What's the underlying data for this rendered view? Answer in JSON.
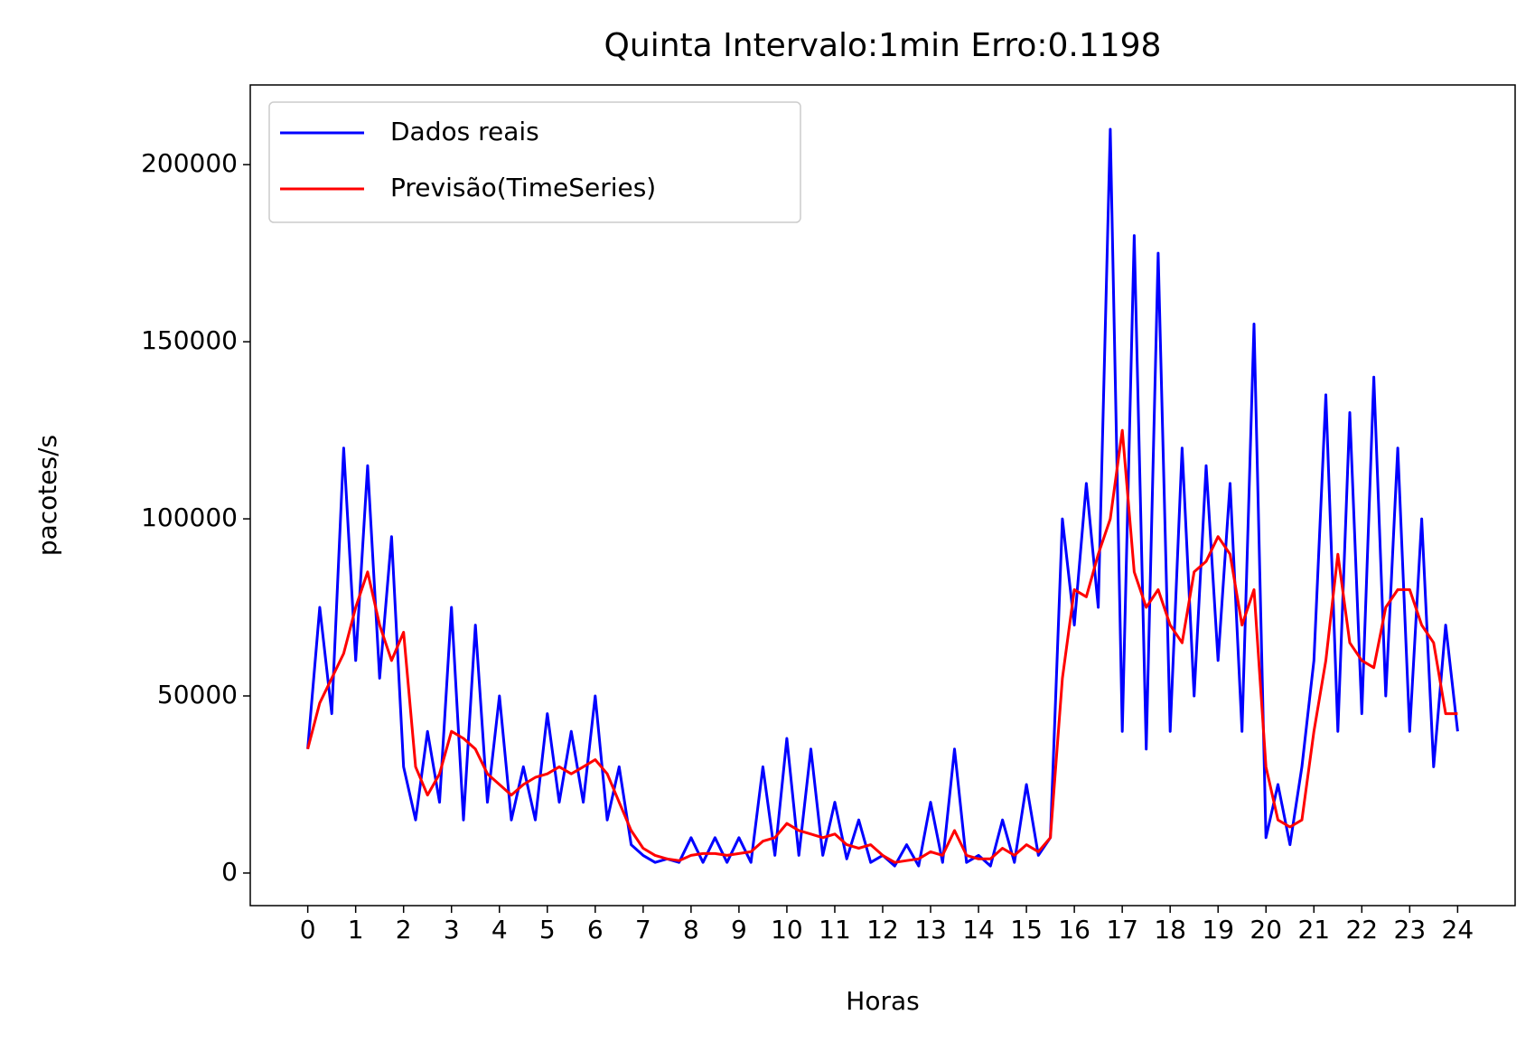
{
  "chart_data": {
    "type": "line",
    "title": "Quinta Intervalo:1min Erro:0.1198",
    "x_label": "Horas",
    "y_label": "pacotes/s",
    "x": [
      0,
      0.25,
      0.5,
      0.75,
      1,
      1.25,
      1.5,
      1.75,
      2,
      2.25,
      2.5,
      2.75,
      3,
      3.25,
      3.5,
      3.75,
      4,
      4.25,
      4.5,
      4.75,
      5,
      5.25,
      5.5,
      5.75,
      6,
      6.25,
      6.5,
      6.75,
      7,
      7.25,
      7.5,
      7.75,
      8,
      8.25,
      8.5,
      8.75,
      9,
      9.25,
      9.5,
      9.75,
      10,
      10.25,
      10.5,
      10.75,
      11,
      11.25,
      11.5,
      11.75,
      12,
      12.25,
      12.5,
      12.75,
      13,
      13.25,
      13.5,
      13.75,
      14,
      14.25,
      14.5,
      14.75,
      15,
      15.25,
      15.5,
      15.75,
      16,
      16.25,
      16.5,
      16.75,
      17,
      17.25,
      17.5,
      17.75,
      18,
      18.25,
      18.5,
      18.75,
      19,
      19.25,
      19.5,
      19.75,
      20,
      20.25,
      20.5,
      20.75,
      21,
      21.25,
      21.5,
      21.75,
      22,
      22.25,
      22.5,
      22.75,
      23,
      23.25,
      23.5,
      23.75,
      24
    ],
    "series": [
      {
        "name": "Dados reais",
        "color": "#0000ff",
        "values": [
          35000,
          75000,
          45000,
          120000,
          60000,
          115000,
          55000,
          95000,
          30000,
          15000,
          40000,
          20000,
          75000,
          15000,
          70000,
          20000,
          50000,
          15000,
          30000,
          15000,
          45000,
          20000,
          40000,
          20000,
          50000,
          15000,
          30000,
          8000,
          5000,
          3000,
          4000,
          3000,
          10000,
          3000,
          10000,
          3000,
          10000,
          3000,
          30000,
          5000,
          38000,
          5000,
          35000,
          5000,
          20000,
          4000,
          15000,
          3000,
          5000,
          2000,
          8000,
          2000,
          20000,
          3000,
          35000,
          3000,
          5000,
          2000,
          15000,
          3000,
          25000,
          5000,
          10000,
          100000,
          70000,
          110000,
          75000,
          210000,
          40000,
          180000,
          35000,
          175000,
          40000,
          120000,
          50000,
          115000,
          60000,
          110000,
          40000,
          155000,
          10000,
          25000,
          8000,
          30000,
          60000,
          135000,
          40000,
          130000,
          45000,
          140000,
          50000,
          120000,
          40000,
          100000,
          30000,
          70000,
          40000
        ]
      },
      {
        "name": "Previsão(TimeSeries)",
        "color": "#ff0000",
        "values": [
          35000,
          48000,
          55000,
          62000,
          75000,
          85000,
          70000,
          60000,
          68000,
          30000,
          22000,
          28000,
          40000,
          38000,
          35000,
          28000,
          25000,
          22000,
          25000,
          27000,
          28000,
          30000,
          28000,
          30000,
          32000,
          28000,
          20000,
          12000,
          7000,
          5000,
          4000,
          3500,
          5000,
          5500,
          5500,
          5000,
          5500,
          6000,
          9000,
          10000,
          14000,
          12000,
          11000,
          10000,
          11000,
          8000,
          7000,
          8000,
          5000,
          3000,
          3500,
          4000,
          6000,
          5000,
          12000,
          5000,
          4000,
          4000,
          7000,
          5000,
          8000,
          6000,
          10000,
          55000,
          80000,
          78000,
          90000,
          100000,
          125000,
          85000,
          75000,
          80000,
          70000,
          65000,
          85000,
          88000,
          95000,
          90000,
          70000,
          80000,
          30000,
          15000,
          13000,
          15000,
          40000,
          60000,
          90000,
          65000,
          60000,
          58000,
          75000,
          80000,
          80000,
          70000,
          65000,
          45000,
          45000
        ]
      }
    ],
    "xlim": [
      -1.2,
      25.2
    ],
    "ylim": [
      -9200,
      222500
    ],
    "xticks": [
      0,
      1,
      2,
      3,
      4,
      5,
      6,
      7,
      8,
      9,
      10,
      11,
      12,
      13,
      14,
      15,
      16,
      17,
      18,
      19,
      20,
      21,
      22,
      23,
      24
    ],
    "yticks": [
      0,
      50000,
      100000,
      150000,
      200000
    ],
    "legend": "upper left"
  }
}
